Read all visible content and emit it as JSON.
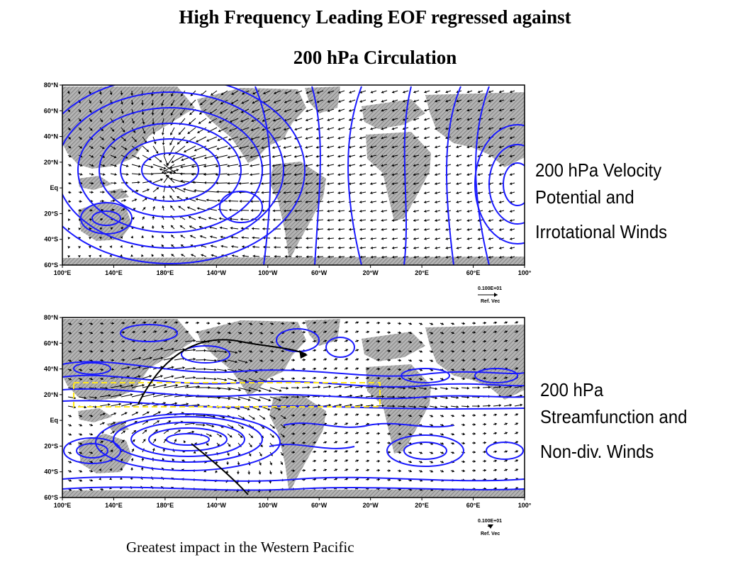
{
  "title": {
    "line1": "High Frequency Leading EOF regressed against",
    "line2": "200 hPa Circulation"
  },
  "axes": {
    "lat_labels": [
      "80°N",
      "60°N",
      "40°N",
      "20°N",
      "Eq",
      "20°S",
      "40°S",
      "60°S"
    ],
    "lon_labels": [
      "100°E",
      "140°E",
      "180°E",
      "140°W",
      "100°W",
      "60°W",
      "20°W",
      "20°E",
      "60°E",
      "100°"
    ]
  },
  "panels": [
    {
      "label_lines": [
        "200 hPa Velocity",
        "Potential  and",
        "Irrotational Winds"
      ],
      "ref_vector_value": "0.100E+01",
      "ref_vector_label": "Ref. Vec"
    },
    {
      "label_lines": [
        "200 hPa",
        "Streamfunction and",
        "Non-div. Winds"
      ],
      "ref_vector_value": "0.100E+01",
      "ref_vector_label": "Ref. Vec"
    }
  ],
  "caption": "Greatest impact in the Western Pacific",
  "colors": {
    "contour": "#1a1aff",
    "land": "#a8a8a8",
    "highlight_box": "#ffe81a",
    "arrow": "#000000"
  }
}
